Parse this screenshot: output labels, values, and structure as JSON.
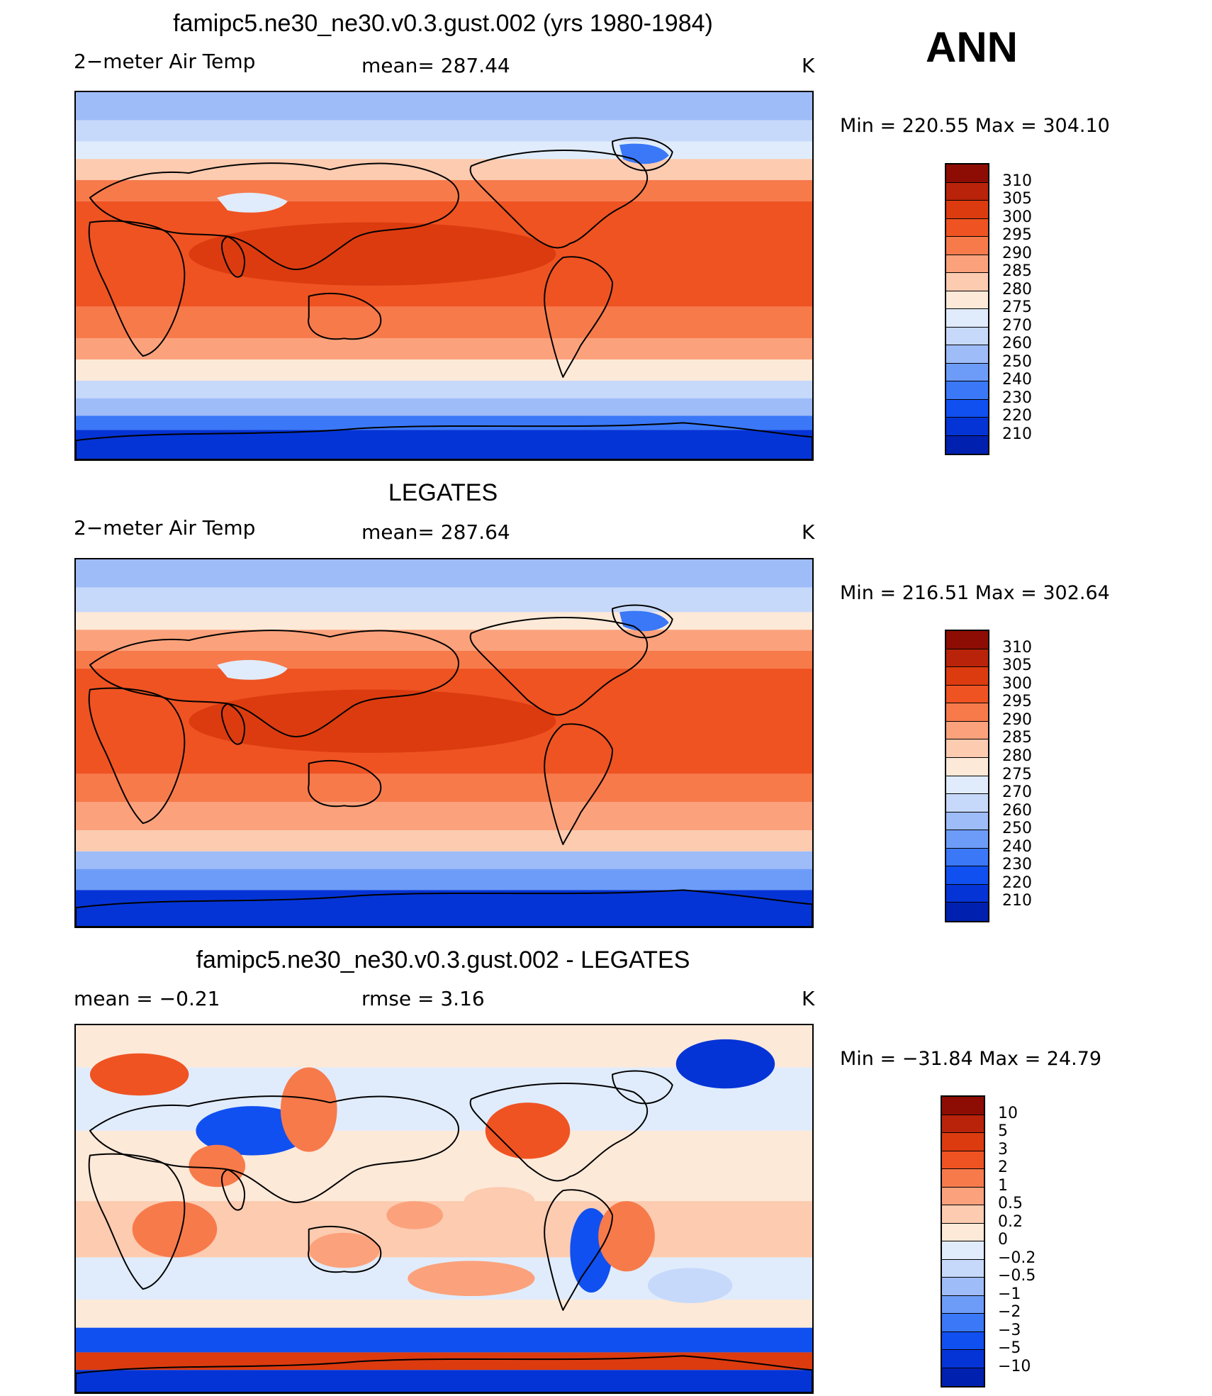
{
  "season": "ANN",
  "colors": {
    "abs": [
      "#08006e",
      "#0020b0",
      "#0534d6",
      "#1050f0",
      "#3a78f8",
      "#6d9cf8",
      "#9ebcf8",
      "#c7d9fa",
      "#e0ecfc",
      "#fde9d8",
      "#fccbb0",
      "#fba27c",
      "#f77a4b",
      "#ef5322",
      "#dc3b10",
      "#b9230a",
      "#8d0d04"
    ],
    "diff": [
      "#08006e",
      "#0020b0",
      "#0534d6",
      "#1050f0",
      "#3a78f8",
      "#6d9cf8",
      "#9ebcf8",
      "#c7d9fa",
      "#e0ecfc",
      "#fde9d8",
      "#fccbb0",
      "#fba27c",
      "#f77a4b",
      "#ef5322",
      "#dc3b10",
      "#b9230a",
      "#8d0d04"
    ]
  },
  "panels": [
    {
      "title": "famipc5.ne30_ne30.v0.3.gust.002 (yrs 1980-1984)",
      "left_label": "2−meter Air Temp",
      "mid_label": "mean=  287.44",
      "units": "K",
      "minmax": "Min  =  220.55  Max  =  304.10",
      "colorbar_labels": [
        "310",
        "305",
        "300",
        "295",
        "290",
        "285",
        "280",
        "275",
        "270",
        "260",
        "250",
        "240",
        "230",
        "220",
        "210"
      ],
      "palette": "abs"
    },
    {
      "title": "LEGATES",
      "left_label": "2−meter Air Temp",
      "mid_label": "mean=  287.64",
      "units": "K",
      "minmax": "Min  =  216.51  Max  =  302.64",
      "colorbar_labels": [
        "310",
        "305",
        "300",
        "295",
        "290",
        "285",
        "280",
        "275",
        "270",
        "260",
        "250",
        "240",
        "230",
        "220",
        "210"
      ],
      "palette": "abs"
    },
    {
      "title": "famipc5.ne30_ne30.v0.3.gust.002 - LEGATES",
      "left_label": "mean  =    −0.21",
      "mid_label": "rmse  =     3.16",
      "units": "K",
      "minmax": "Min  =  −31.84  Max  =    24.79",
      "colorbar_labels": [
        "10",
        "5",
        "3",
        "2",
        "1",
        "0.5",
        "0.2",
        "0",
        "−0.2",
        "−0.5",
        "−1",
        "−2",
        "−3",
        "−5",
        "−10"
      ],
      "palette": "diff"
    }
  ]
}
